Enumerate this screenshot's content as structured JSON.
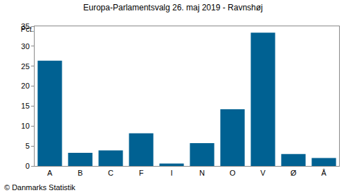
{
  "chart_data": {
    "type": "bar",
    "title": "Europa-Parlamentsvalg 26. maj 2019 - Ravnshøj",
    "ylabel": "Pct.",
    "categories": [
      "A",
      "B",
      "C",
      "F",
      "I",
      "N",
      "O",
      "V",
      "Ø",
      "Å"
    ],
    "values": [
      26.4,
      3.3,
      3.9,
      8.2,
      0.6,
      5.7,
      14.2,
      33.4,
      3.0,
      2.0
    ],
    "color": "#006192",
    "ylim": [
      0,
      35
    ],
    "yticks": [
      0,
      5,
      10,
      15,
      20,
      25,
      30,
      35
    ],
    "grid": false,
    "annotations": [
      "© Danmarks Statistik"
    ]
  }
}
